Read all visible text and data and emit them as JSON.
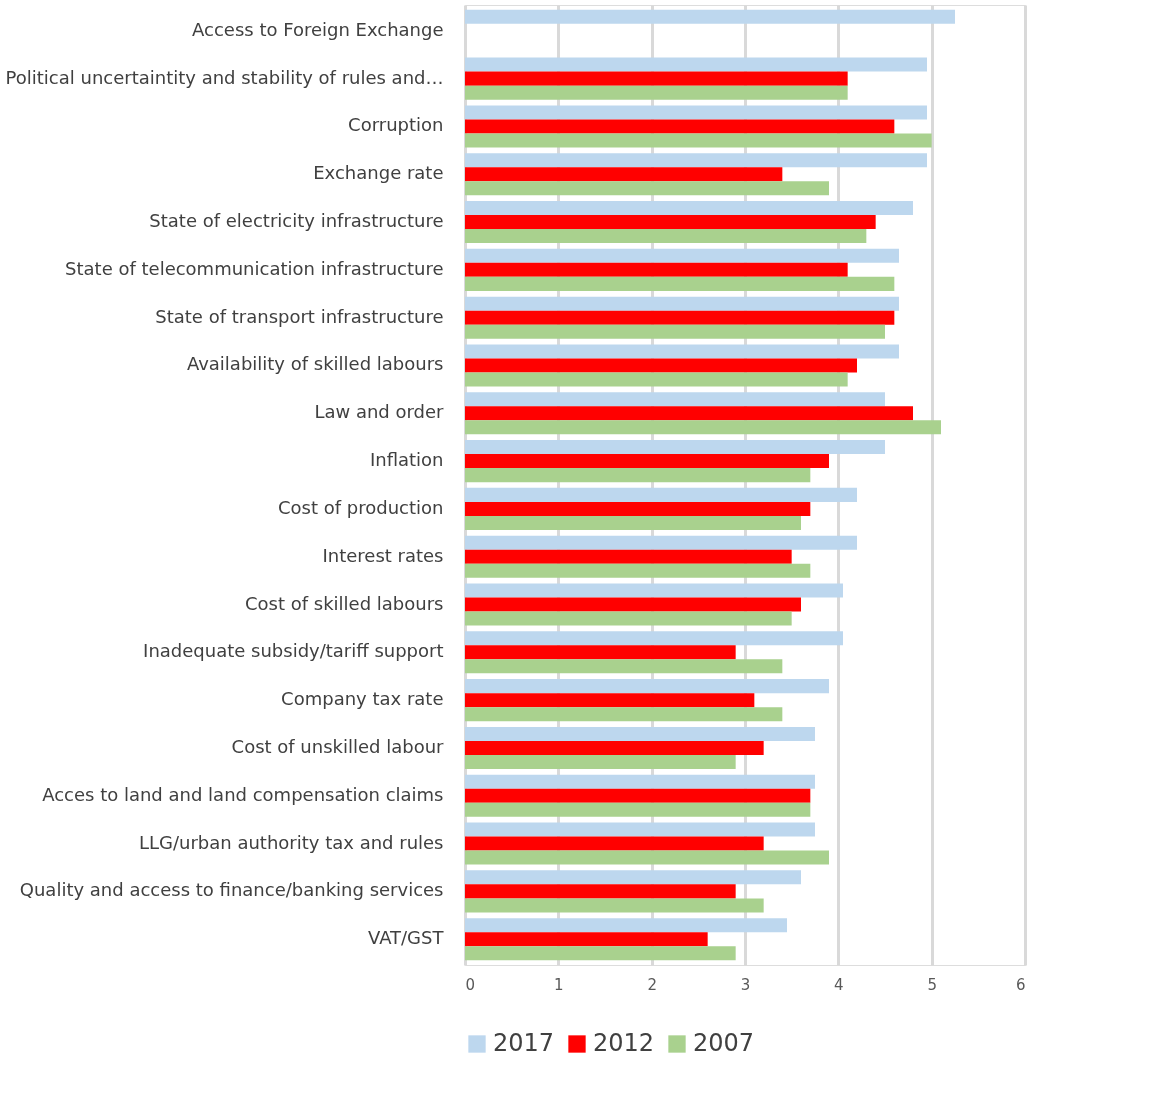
{
  "chart_data": {
    "type": "bar",
    "orientation": "horizontal",
    "categories": [
      "Access to Foreign Exchange",
      "Political uncertaintity and stability of rules and…",
      "Corruption",
      "Exchange rate",
      "State of electricity infrastructure",
      "State of telecommunication infrastructure",
      "State of transport infrastructure",
      "Availability of skilled labours",
      "Law and order",
      "Inflation",
      "Cost of production",
      "Interest rates",
      "Cost of skilled labours",
      "Inadequate subsidy/tariff support",
      "Company tax rate",
      "Cost of unskilled labour",
      "Acces to land and land compensation claims",
      "LLG/urban authority tax and rules",
      "Quality and access to finance/banking services",
      "VAT/GST"
    ],
    "series": [
      {
        "name": "2017",
        "color": "#bdd7ee",
        "values": [
          5.25,
          4.95,
          4.95,
          4.95,
          4.8,
          4.65,
          4.65,
          4.65,
          4.5,
          4.5,
          4.2,
          4.2,
          4.05,
          4.05,
          3.9,
          3.75,
          3.75,
          3.75,
          3.6,
          3.45
        ]
      },
      {
        "name": "2012",
        "color": "#ff0000",
        "values": [
          null,
          4.1,
          4.6,
          3.4,
          4.4,
          4.1,
          4.6,
          4.2,
          4.8,
          3.9,
          3.7,
          3.5,
          3.6,
          2.9,
          3.1,
          3.2,
          3.7,
          3.2,
          2.9,
          2.6
        ]
      },
      {
        "name": "2007",
        "color": "#a9d18e",
        "values": [
          null,
          4.1,
          5.0,
          3.9,
          4.3,
          4.6,
          4.5,
          4.1,
          5.1,
          3.7,
          3.6,
          3.7,
          3.5,
          3.4,
          3.4,
          2.9,
          3.7,
          3.9,
          3.2,
          2.9
        ]
      }
    ],
    "xlim": [
      0,
      6
    ],
    "xticks": [
      0,
      1,
      2,
      3,
      4,
      5,
      6
    ],
    "grid": "x",
    "legend": "bottom"
  }
}
